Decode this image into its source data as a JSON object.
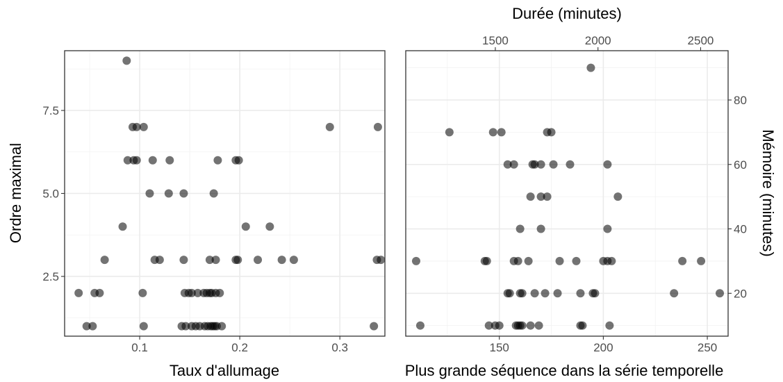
{
  "chart_data": [
    {
      "type": "scatter",
      "title": "",
      "xlabel": "Taux d'allumage",
      "ylabel": "Ordre maximal",
      "xlim": [
        0.025,
        0.345
      ],
      "ylim": [
        0.7,
        9.3
      ],
      "x_ticks": [
        0.1,
        0.2,
        0.3
      ],
      "x_tick_labels": [
        "0.1",
        "0.2",
        "0.3"
      ],
      "y_ticks": [
        2.5,
        5.0,
        7.5
      ],
      "y_tick_labels": [
        "2.5",
        "5.0",
        "7.5"
      ],
      "grid": true,
      "points": [
        {
          "x": 0.087,
          "y": 9
        },
        {
          "x": 0.093,
          "y": 7
        },
        {
          "x": 0.097,
          "y": 7
        },
        {
          "x": 0.104,
          "y": 7
        },
        {
          "x": 0.29,
          "y": 7
        },
        {
          "x": 0.338,
          "y": 7
        },
        {
          "x": 0.088,
          "y": 6
        },
        {
          "x": 0.094,
          "y": 6
        },
        {
          "x": 0.097,
          "y": 6
        },
        {
          "x": 0.113,
          "y": 6
        },
        {
          "x": 0.13,
          "y": 6
        },
        {
          "x": 0.178,
          "y": 6
        },
        {
          "x": 0.196,
          "y": 6
        },
        {
          "x": 0.199,
          "y": 6
        },
        {
          "x": 0.11,
          "y": 5
        },
        {
          "x": 0.129,
          "y": 5
        },
        {
          "x": 0.144,
          "y": 5
        },
        {
          "x": 0.174,
          "y": 5
        },
        {
          "x": 0.083,
          "y": 4
        },
        {
          "x": 0.206,
          "y": 4
        },
        {
          "x": 0.23,
          "y": 4
        },
        {
          "x": 0.065,
          "y": 3
        },
        {
          "x": 0.115,
          "y": 3
        },
        {
          "x": 0.12,
          "y": 3
        },
        {
          "x": 0.144,
          "y": 3
        },
        {
          "x": 0.17,
          "y": 3
        },
        {
          "x": 0.176,
          "y": 3
        },
        {
          "x": 0.196,
          "y": 3
        },
        {
          "x": 0.198,
          "y": 3
        },
        {
          "x": 0.218,
          "y": 3
        },
        {
          "x": 0.242,
          "y": 3
        },
        {
          "x": 0.254,
          "y": 3
        },
        {
          "x": 0.337,
          "y": 3
        },
        {
          "x": 0.341,
          "y": 3
        },
        {
          "x": 0.039,
          "y": 2
        },
        {
          "x": 0.055,
          "y": 2
        },
        {
          "x": 0.06,
          "y": 2
        },
        {
          "x": 0.103,
          "y": 2
        },
        {
          "x": 0.145,
          "y": 2
        },
        {
          "x": 0.149,
          "y": 2
        },
        {
          "x": 0.152,
          "y": 2
        },
        {
          "x": 0.158,
          "y": 2
        },
        {
          "x": 0.164,
          "y": 2
        },
        {
          "x": 0.167,
          "y": 2
        },
        {
          "x": 0.17,
          "y": 2
        },
        {
          "x": 0.172,
          "y": 2
        },
        {
          "x": 0.176,
          "y": 2
        },
        {
          "x": 0.18,
          "y": 2
        },
        {
          "x": 0.047,
          "y": 1
        },
        {
          "x": 0.053,
          "y": 1
        },
        {
          "x": 0.104,
          "y": 1
        },
        {
          "x": 0.142,
          "y": 1
        },
        {
          "x": 0.146,
          "y": 1
        },
        {
          "x": 0.152,
          "y": 1
        },
        {
          "x": 0.156,
          "y": 1
        },
        {
          "x": 0.16,
          "y": 1
        },
        {
          "x": 0.165,
          "y": 1
        },
        {
          "x": 0.168,
          "y": 1
        },
        {
          "x": 0.171,
          "y": 1
        },
        {
          "x": 0.173,
          "y": 1
        },
        {
          "x": 0.175,
          "y": 1
        },
        {
          "x": 0.177,
          "y": 1
        },
        {
          "x": 0.182,
          "y": 1
        },
        {
          "x": 0.334,
          "y": 1
        }
      ],
      "point_color": "#000000",
      "point_opacity": 0.55
    },
    {
      "type": "scatter",
      "title": "",
      "xlabel": "Plus grande séquence dans la série temporelle",
      "ylabel": "Mémoire (minutes)",
      "x2label": "Durée (minutes)",
      "xlim": [
        105,
        260
      ],
      "ylim": [
        6.7,
        95.3
      ],
      "x_ticks": [
        150,
        200,
        250
      ],
      "x_tick_labels": [
        "150",
        "200",
        "250"
      ],
      "x2_ticks": [
        1500,
        2000,
        2500
      ],
      "x2_tick_labels": [
        "1500",
        "2000",
        "2500"
      ],
      "x2_per_x": 10.13,
      "y_ticks": [
        20,
        40,
        60,
        80
      ],
      "y_tick_labels": [
        "20",
        "40",
        "60",
        "80"
      ],
      "y_axis_position": "right",
      "grid": true,
      "points": [
        {
          "x": 194,
          "y": 90
        },
        {
          "x": 126,
          "y": 70
        },
        {
          "x": 147,
          "y": 70
        },
        {
          "x": 151,
          "y": 70
        },
        {
          "x": 173,
          "y": 70
        },
        {
          "x": 175,
          "y": 70
        },
        {
          "x": 154,
          "y": 60
        },
        {
          "x": 157,
          "y": 60
        },
        {
          "x": 166,
          "y": 60
        },
        {
          "x": 167,
          "y": 60
        },
        {
          "x": 170,
          "y": 60
        },
        {
          "x": 176,
          "y": 60
        },
        {
          "x": 184,
          "y": 60
        },
        {
          "x": 202,
          "y": 60
        },
        {
          "x": 165,
          "y": 50
        },
        {
          "x": 170,
          "y": 50
        },
        {
          "x": 173,
          "y": 50
        },
        {
          "x": 207,
          "y": 50
        },
        {
          "x": 160,
          "y": 40
        },
        {
          "x": 170,
          "y": 40
        },
        {
          "x": 202,
          "y": 40
        },
        {
          "x": 110,
          "y": 30
        },
        {
          "x": 143,
          "y": 30
        },
        {
          "x": 144,
          "y": 30
        },
        {
          "x": 157,
          "y": 30
        },
        {
          "x": 159,
          "y": 30
        },
        {
          "x": 164,
          "y": 30
        },
        {
          "x": 179,
          "y": 30
        },
        {
          "x": 187,
          "y": 30
        },
        {
          "x": 200,
          "y": 30
        },
        {
          "x": 202,
          "y": 30
        },
        {
          "x": 204,
          "y": 30
        },
        {
          "x": 238,
          "y": 30
        },
        {
          "x": 247,
          "y": 30
        },
        {
          "x": 154,
          "y": 20
        },
        {
          "x": 155,
          "y": 20
        },
        {
          "x": 160,
          "y": 20
        },
        {
          "x": 161,
          "y": 20
        },
        {
          "x": 167,
          "y": 20
        },
        {
          "x": 172,
          "y": 20
        },
        {
          "x": 178,
          "y": 20
        },
        {
          "x": 189,
          "y": 20
        },
        {
          "x": 195,
          "y": 20
        },
        {
          "x": 196,
          "y": 20
        },
        {
          "x": 234,
          "y": 20
        },
        {
          "x": 256,
          "y": 20
        },
        {
          "x": 112,
          "y": 10
        },
        {
          "x": 145,
          "y": 10
        },
        {
          "x": 148,
          "y": 10
        },
        {
          "x": 150,
          "y": 10
        },
        {
          "x": 158,
          "y": 10
        },
        {
          "x": 159,
          "y": 10
        },
        {
          "x": 160,
          "y": 10
        },
        {
          "x": 161,
          "y": 10
        },
        {
          "x": 165,
          "y": 10
        },
        {
          "x": 169,
          "y": 10
        },
        {
          "x": 189,
          "y": 10
        },
        {
          "x": 190,
          "y": 10
        },
        {
          "x": 203,
          "y": 10
        }
      ],
      "point_color": "#000000",
      "point_opacity": 0.55
    }
  ]
}
